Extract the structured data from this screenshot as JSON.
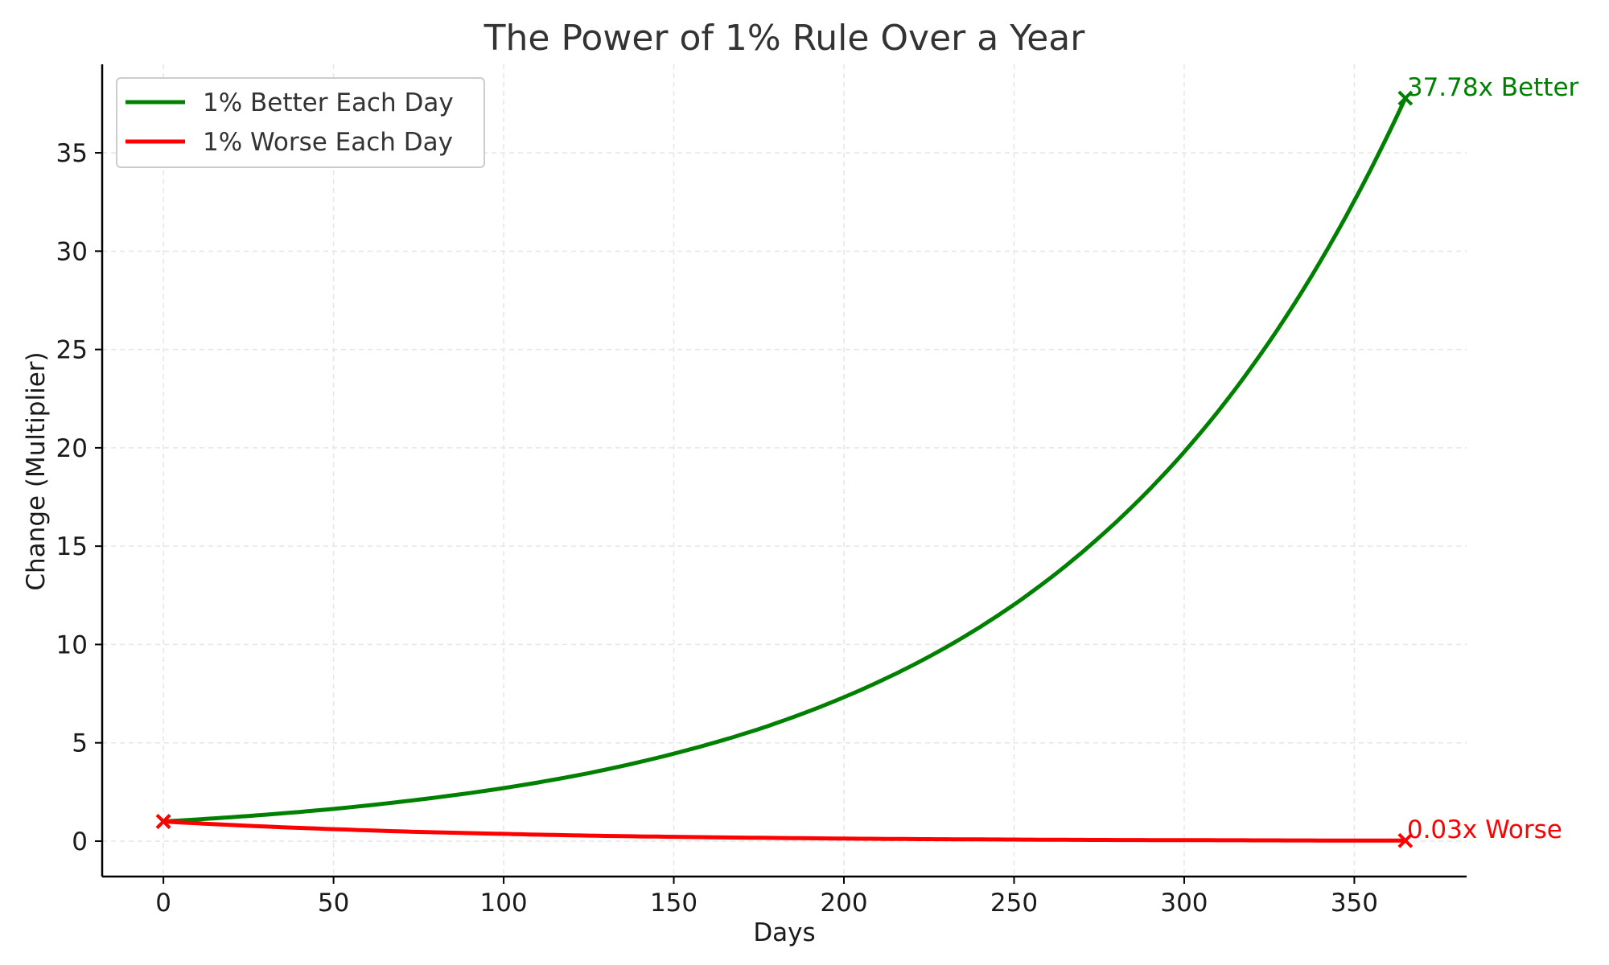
{
  "chart_data": {
    "type": "line",
    "title": "The Power of 1% Rule Over a Year",
    "xlabel": "Days",
    "ylabel": "Change (Multiplier)",
    "xlim": [
      -18,
      383
    ],
    "ylim": [
      -1.8,
      39.5
    ],
    "xticks": [
      0,
      50,
      100,
      150,
      200,
      250,
      300,
      350
    ],
    "yticks": [
      0,
      5,
      10,
      15,
      20,
      25,
      30,
      35
    ],
    "grid": true,
    "legend_position": "top-left",
    "series": [
      {
        "name": "1% Better Each Day",
        "color": "#008000",
        "x": [
          0,
          25,
          50,
          75,
          100,
          125,
          150,
          175,
          200,
          225,
          250,
          275,
          300,
          325,
          350,
          365
        ],
        "y": [
          1.0,
          1.28,
          1.64,
          2.11,
          2.7,
          3.46,
          4.45,
          5.7,
          7.32,
          9.38,
          12.03,
          15.44,
          19.79,
          25.39,
          32.56,
          37.78
        ]
      },
      {
        "name": "1% Worse Each Day",
        "color": "#ff0000",
        "x": [
          0,
          25,
          50,
          75,
          100,
          125,
          150,
          175,
          200,
          225,
          250,
          275,
          300,
          325,
          350,
          365
        ],
        "y": [
          1.0,
          0.78,
          0.61,
          0.47,
          0.37,
          0.28,
          0.22,
          0.17,
          0.13,
          0.1,
          0.08,
          0.06,
          0.05,
          0.04,
          0.03,
          0.03
        ]
      }
    ],
    "markers": [
      {
        "series": 0,
        "x": 0,
        "y": 1.0
      },
      {
        "series": 0,
        "x": 365,
        "y": 37.78
      },
      {
        "series": 1,
        "x": 0,
        "y": 1.0
      },
      {
        "series": 1,
        "x": 365,
        "y": 0.03
      }
    ],
    "annotations": [
      {
        "text": "37.78x Better",
        "x": 365,
        "y": 37.78,
        "color": "#008000"
      },
      {
        "text": "0.03x Worse",
        "x": 365,
        "y": 0.03,
        "color": "#ff0000"
      }
    ]
  }
}
